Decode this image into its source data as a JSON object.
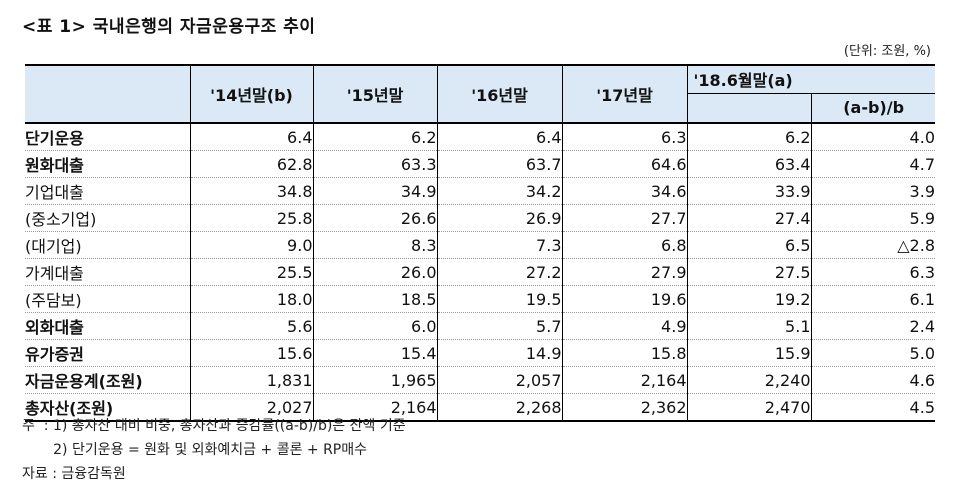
{
  "title": "<표 1> 국내은행의 자금운용구조 추이",
  "unit": "(단위: 조원, %)",
  "columns": [
    "'14년말(b)",
    "'15년말",
    "'16년말",
    "'17년말",
    "'18.6월말(a)",
    "(a-b)/b"
  ],
  "rows": [
    {
      "label": "단기운용",
      "level": 0,
      "values": [
        "6.4",
        "6.2",
        "6.4",
        "6.3",
        "6.2",
        "4.0"
      ]
    },
    {
      "label": "원화대출",
      "level": 0,
      "values": [
        "62.8",
        "63.3",
        "63.7",
        "64.6",
        "63.4",
        "4.7"
      ]
    },
    {
      "label": "기업대출",
      "level": 1,
      "values": [
        "34.8",
        "34.9",
        "34.2",
        "34.6",
        "33.9",
        "3.9"
      ]
    },
    {
      "label": "(중소기업)",
      "level": 2,
      "values": [
        "25.8",
        "26.6",
        "26.9",
        "27.7",
        "27.4",
        "5.9"
      ]
    },
    {
      "label": "(대기업)",
      "level": 2,
      "values": [
        "9.0",
        "8.3",
        "7.3",
        "6.8",
        "6.5",
        "△2.8"
      ]
    },
    {
      "label": "가계대출",
      "level": 1,
      "values": [
        "25.5",
        "26.0",
        "27.2",
        "27.9",
        "27.5",
        "6.3"
      ]
    },
    {
      "label": "(주담보)",
      "level": 2,
      "values": [
        "18.0",
        "18.5",
        "19.5",
        "19.6",
        "19.2",
        "6.1"
      ]
    },
    {
      "label": "외화대출",
      "level": 0,
      "values": [
        "5.6",
        "6.0",
        "5.7",
        "4.9",
        "5.1",
        "2.4"
      ]
    },
    {
      "label": "유가증권",
      "level": 0,
      "values": [
        "15.6",
        "15.4",
        "14.9",
        "15.8",
        "15.9",
        "5.0"
      ]
    },
    {
      "label": "자금운용계(조원)",
      "level": 0,
      "values": [
        "1,831",
        "1,965",
        "2,057",
        "2,164",
        "2,240",
        "4.6"
      ]
    },
    {
      "label": "총자산(조원)",
      "level": 0,
      "values": [
        "2,027",
        "2,164",
        "2,268",
        "2,362",
        "2,470",
        "4.5"
      ]
    }
  ],
  "notes": [
    "주  : 1) 총자산 대비 비중, 총자산과 증감률((a-b)/b)은 잔액 기준",
    "       2) 단기운용 = 원화 및 외화예치금 + 콜론 + RP매수",
    "자료 : 금융감독원"
  ]
}
